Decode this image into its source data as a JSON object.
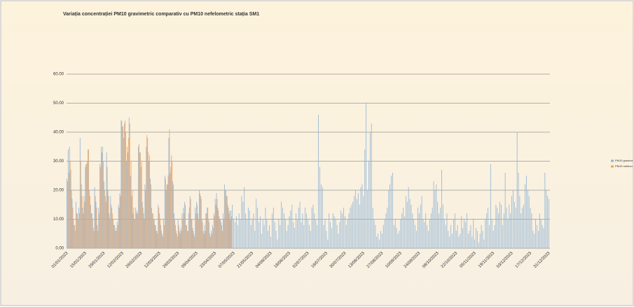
{
  "chart_data": {
    "type": "bar",
    "title": "Variația concentrației PM10 gravimetric comparativ cu PM10 nefelometric stația SM1",
    "categories": [
      "01/01/2023",
      null,
      null,
      null,
      null,
      null,
      null,
      null,
      null,
      null,
      null,
      null,
      null,
      null,
      "15/01/2023",
      null,
      null,
      null,
      null,
      null,
      null,
      null,
      null,
      null,
      null,
      null,
      null,
      null,
      "29/01/2023",
      null,
      null,
      null,
      null,
      null,
      null,
      null,
      null,
      null,
      null,
      null,
      null,
      null,
      "12/02/2023",
      null,
      null,
      null,
      null,
      null,
      null,
      null,
      null,
      null,
      null,
      null,
      null,
      null,
      "26/02/2023",
      null,
      null,
      null,
      null,
      null,
      null,
      null,
      null,
      null,
      null,
      null,
      null,
      null,
      "12/03/2023",
      null,
      null,
      null,
      null,
      null,
      null,
      null,
      null,
      null,
      null,
      null,
      null,
      null,
      "26/03/2023",
      null,
      null,
      null,
      null,
      null,
      null,
      null,
      null,
      null,
      null,
      null,
      null,
      null,
      "09/04/2023",
      null,
      null,
      null,
      null,
      null,
      null,
      null,
      null,
      null,
      null,
      null,
      null,
      null,
      "23/04/2023",
      null,
      null,
      null,
      null,
      null,
      null,
      null,
      null,
      null,
      null,
      null,
      null,
      null,
      "07/05/2023",
      null,
      null,
      null,
      null,
      null,
      null,
      null,
      null,
      null,
      null,
      null,
      null,
      null,
      "21/05/2023",
      null,
      null,
      null,
      null,
      null,
      null,
      null,
      null,
      null,
      null,
      null,
      null,
      null,
      "04/06/2023",
      null,
      null,
      null,
      null,
      null,
      null,
      null,
      null,
      null,
      null,
      null,
      null,
      null,
      "18/06/2023",
      null,
      null,
      null,
      null,
      null,
      null,
      null,
      null,
      null,
      null,
      null,
      null,
      null,
      "02/07/2023",
      null,
      null,
      null,
      null,
      null,
      null,
      null,
      null,
      null,
      null,
      null,
      null,
      null,
      "16/07/2023",
      null,
      null,
      null,
      null,
      null,
      null,
      null,
      null,
      null,
      null,
      null,
      null,
      null,
      "30/07/2023",
      null,
      null,
      null,
      null,
      null,
      null,
      null,
      null,
      null,
      null,
      null,
      null,
      null,
      "13/08/2023",
      null,
      null,
      null,
      null,
      null,
      null,
      null,
      null,
      null,
      null,
      null,
      null,
      null,
      "27/08/2023",
      null,
      null,
      null,
      null,
      null,
      null,
      null,
      null,
      null,
      null,
      null,
      null,
      null,
      "10/09/2023",
      null,
      null,
      null,
      null,
      null,
      null,
      null,
      null,
      null,
      null,
      null,
      null,
      null,
      "24/09/2023",
      null,
      null,
      null,
      null,
      null,
      null,
      null,
      null,
      null,
      null,
      null,
      null,
      null,
      "08/10/2023",
      null,
      null,
      null,
      null,
      null,
      null,
      null,
      null,
      null,
      null,
      null,
      null,
      null,
      "22/10/2023",
      null,
      null,
      null,
      null,
      null,
      null,
      null,
      null,
      null,
      null,
      null,
      null,
      null,
      "05/11/2023",
      null,
      null,
      null,
      null,
      null,
      null,
      null,
      null,
      null,
      null,
      null,
      null,
      null,
      "19/11/2023",
      null,
      null,
      null,
      null,
      null,
      null,
      null,
      null,
      null,
      null,
      null,
      null,
      null,
      "03/12/2023",
      null,
      null,
      null,
      null,
      null,
      null,
      null,
      null,
      null,
      null,
      null,
      null,
      null,
      "17/12/2023",
      null,
      null,
      null,
      null,
      null,
      null,
      null,
      null,
      null,
      null,
      null,
      null,
      null,
      "31/12/2023"
    ],
    "series": [
      {
        "name": "PM10 gravimetric",
        "color": "#8fb4d6",
        "values": [
          24,
          34,
          35,
          27,
          17,
          10,
          8,
          16,
          12,
          14,
          38,
          22,
          14,
          18,
          28,
          29,
          34,
          20,
          15,
          12,
          7,
          21,
          16,
          8,
          14,
          29,
          35,
          35,
          23,
          18,
          33,
          20,
          12,
          18,
          14,
          10,
          8,
          7,
          9,
          15,
          19,
          44,
          42,
          38,
          44,
          30,
          33,
          45,
          25,
          18,
          12,
          10,
          14,
          13,
          35,
          33,
          28,
          16,
          12,
          22,
          35,
          38,
          30,
          24,
          14,
          12,
          10,
          8,
          6,
          15,
          12,
          8,
          5,
          10,
          25,
          20,
          22,
          38,
          26,
          32,
          23,
          12,
          8,
          5,
          10,
          6,
          7,
          12,
          14,
          16,
          8,
          6,
          12,
          18,
          10,
          7,
          5,
          14,
          16,
          12,
          20,
          18,
          10,
          6,
          8,
          12,
          14,
          10,
          5,
          6,
          8,
          12,
          17,
          19,
          14,
          11,
          10,
          8,
          12,
          22,
          20,
          18,
          14,
          13,
          13,
          15,
          10,
          9,
          11,
          8,
          12,
          10,
          18,
          16,
          21,
          12,
          10,
          14,
          13,
          8,
          10,
          12,
          6,
          17,
          14,
          9,
          11,
          5,
          10,
          8,
          14,
          10,
          6,
          8,
          4,
          12,
          14,
          9,
          6,
          3,
          10,
          8,
          16,
          14,
          12,
          10,
          6,
          8,
          11,
          13,
          15,
          9,
          7,
          12,
          10,
          14,
          16,
          9,
          12,
          8,
          14,
          12,
          10,
          8,
          6,
          14,
          15,
          12,
          10,
          8,
          46,
          28,
          22,
          21,
          8,
          10,
          6,
          3,
          12,
          9,
          7,
          12,
          11,
          10,
          8,
          5,
          9,
          13,
          12,
          14,
          11,
          8,
          10,
          12,
          14,
          15,
          16,
          18,
          20,
          17,
          19,
          15,
          21,
          22,
          18,
          34,
          50,
          20,
          30,
          40,
          43,
          14,
          10,
          8,
          4,
          5,
          3,
          6,
          5,
          8,
          10,
          12,
          14,
          20,
          22,
          25,
          26,
          8,
          10,
          7,
          5,
          6,
          10,
          12,
          14,
          11,
          18,
          16,
          21,
          17,
          15,
          12,
          10,
          8,
          6,
          14,
          12,
          15,
          18,
          10,
          9,
          12,
          8,
          6,
          10,
          12,
          14,
          23,
          20,
          22,
          16,
          12,
          14,
          27,
          15,
          10,
          8,
          12,
          6,
          4,
          8,
          5,
          10,
          12,
          6,
          8,
          4,
          5,
          11,
          7,
          10,
          9,
          12,
          5,
          6,
          8,
          4,
          10,
          3,
          7,
          6,
          2,
          5,
          8,
          6,
          3,
          10,
          12,
          14,
          8,
          29,
          10,
          6,
          8,
          15,
          14,
          12,
          16,
          15,
          8,
          12,
          26,
          14,
          10,
          15,
          12,
          18,
          20,
          16,
          14,
          40,
          26,
          18,
          12,
          14,
          15,
          22,
          25,
          20,
          18,
          14,
          12,
          6,
          5,
          10,
          8,
          6,
          12,
          10,
          8,
          7,
          26,
          20,
          18,
          17
        ]
      },
      {
        "name": "PM10 nefelometric",
        "color": "#f0a35e",
        "values": [
          23,
          26,
          30,
          20,
          14,
          8,
          6,
          12,
          10,
          12,
          30,
          18,
          12,
          16,
          29,
          30,
          34,
          18,
          12,
          10,
          6,
          18,
          14,
          6,
          12,
          28,
          33,
          30,
          20,
          16,
          28,
          18,
          10,
          15,
          12,
          8,
          6,
          6,
          8,
          14,
          18,
          44,
          42,
          43,
          40,
          35,
          38,
          43,
          30,
          20,
          14,
          10,
          12,
          12,
          36,
          33,
          30,
          14,
          10,
          20,
          39,
          33,
          32,
          22,
          12,
          10,
          8,
          6,
          5,
          14,
          10,
          6,
          4,
          8,
          24,
          22,
          25,
          41,
          28,
          30,
          22,
          10,
          6,
          4,
          8,
          5,
          6,
          10,
          12,
          15,
          8,
          6,
          14,
          17,
          10,
          6,
          4,
          12,
          15,
          10,
          19,
          17,
          9,
          5,
          6,
          12,
          14,
          9,
          4,
          5,
          7,
          11,
          15,
          17,
          13,
          10,
          9,
          6,
          10,
          20,
          18,
          15,
          12,
          10,
          11,
          null,
          null,
          null,
          null,
          null,
          null,
          null,
          null,
          null,
          null,
          null,
          null,
          null,
          null,
          null,
          null,
          null,
          null,
          null,
          null,
          null,
          null,
          null,
          null,
          null,
          null,
          null,
          null,
          null,
          null,
          null,
          null,
          null,
          null,
          null,
          null,
          null,
          null,
          null,
          null,
          null,
          null,
          null,
          null,
          null,
          null,
          null,
          null,
          null,
          null,
          null,
          null,
          null,
          null,
          null,
          null,
          null,
          null,
          null,
          null,
          null,
          null,
          null,
          null,
          null,
          null,
          null,
          null,
          null,
          null,
          null,
          null,
          null,
          null,
          null,
          null,
          null,
          null,
          null,
          null,
          null,
          null,
          null,
          null,
          null,
          null,
          null,
          null,
          null,
          null,
          null,
          null,
          null,
          null,
          null,
          null,
          null,
          null,
          null,
          null,
          null,
          null,
          null,
          null,
          null,
          null,
          null,
          null,
          null,
          null,
          null,
          null,
          null,
          null,
          null,
          null,
          null,
          null,
          null,
          null,
          null,
          null,
          null,
          null,
          null,
          null,
          null,
          null,
          null,
          null,
          null,
          null,
          null,
          null,
          null,
          null,
          null,
          null,
          null,
          null,
          null,
          null,
          null,
          null,
          null,
          null,
          null,
          null,
          null,
          null,
          null,
          null,
          null,
          null,
          null,
          null,
          null,
          null,
          null,
          null,
          null,
          null,
          null,
          null,
          null,
          null,
          null,
          null,
          null,
          null,
          null,
          null,
          null,
          null,
          null,
          null,
          null,
          null,
          null,
          null,
          null,
          null,
          null,
          null,
          null,
          null,
          null,
          null,
          null,
          null,
          null,
          null,
          null,
          null,
          null,
          null,
          null,
          null,
          null,
          null,
          null,
          null,
          null,
          null,
          null,
          null,
          null,
          null,
          null,
          null,
          null,
          null,
          null,
          null,
          null,
          null,
          null,
          null,
          null,
          null,
          null,
          null,
          null,
          null,
          null,
          null,
          null,
          null,
          null,
          null,
          null,
          null,
          null,
          null,
          null,
          null,
          null,
          null,
          null,
          null
        ]
      }
    ],
    "ylim": [
      0,
      60
    ],
    "yticks": [
      {
        "value": 0,
        "label": "0.00"
      },
      {
        "value": 10,
        "label": "10.00"
      },
      {
        "value": 20,
        "label": "20.00"
      },
      {
        "value": 30,
        "label": "30.00"
      },
      {
        "value": 40,
        "label": "40.00"
      },
      {
        "value": 50,
        "label": "50.00"
      },
      {
        "value": 60,
        "label": "60.00"
      }
    ],
    "grid": true,
    "legend": "right"
  }
}
